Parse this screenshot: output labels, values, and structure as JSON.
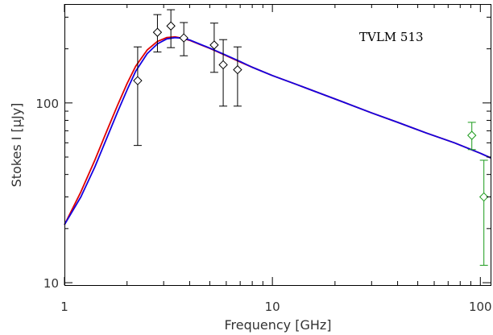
{
  "chart_data": {
    "type": "line",
    "annotation": "TVLM 513",
    "xlabel": "Frequency [GHz]",
    "ylabel": "Stokes I [μJy]",
    "x_scale": "log",
    "y_scale": "log",
    "xlim": [
      1,
      112
    ],
    "ylim": [
      9.7,
      355
    ],
    "x_ticks": [
      1,
      10,
      100
    ],
    "x_tick_labels": [
      "1",
      "10",
      "100"
    ],
    "y_ticks": [
      10,
      100
    ],
    "y_tick_labels": [
      "10",
      "100"
    ],
    "grid": false,
    "legend": "none",
    "colors": {
      "model_red": "#e00000",
      "model_blue": "#1400e0",
      "data_black": "#000000",
      "data_green": "#1a9a1a"
    },
    "series": [
      {
        "kind": "model-curve",
        "color": "#e00000",
        "x": [
          1.0,
          1.2,
          1.4,
          1.6,
          1.8,
          2.0,
          2.2,
          2.5,
          2.8,
          3.1,
          3.4,
          3.7,
          4.0,
          4.5,
          5.0,
          6.0,
          7.0,
          8.0,
          10.0,
          13.0,
          17.0,
          22.0,
          30.0,
          40.0,
          55.0,
          75.0,
          100.0,
          112.0
        ],
        "y": [
          21.0,
          32.0,
          48.0,
          70.0,
          97.0,
          128.0,
          160.0,
          197.0,
          220.0,
          231.0,
          233.0,
          229.0,
          223.0,
          211.0,
          201.0,
          183.0,
          169.0,
          158.0,
          142.0,
          127.0,
          113.0,
          101.0,
          88.0,
          78.0,
          68.0,
          60.0,
          52.5,
          49.5
        ]
      },
      {
        "kind": "model-curve",
        "color": "#1400e0",
        "x": [
          1.0,
          1.2,
          1.4,
          1.6,
          1.8,
          2.0,
          2.2,
          2.5,
          2.8,
          3.1,
          3.4,
          3.7,
          4.0,
          4.5,
          5.0,
          6.0,
          7.0,
          8.0,
          10.0,
          13.0,
          17.0,
          22.0,
          30.0,
          40.0,
          55.0,
          75.0,
          100.0,
          112.0
        ],
        "y": [
          21.0,
          30.0,
          44.0,
          64.0,
          89.0,
          118.0,
          150.0,
          188.0,
          213.0,
          227.0,
          231.0,
          229.0,
          224.0,
          212.0,
          202.0,
          184.0,
          170.0,
          158.0,
          142.0,
          127.0,
          113.0,
          101.0,
          88.0,
          78.0,
          68.0,
          60.0,
          52.5,
          49.5
        ]
      },
      {
        "kind": "data-points",
        "marker": "diamond",
        "color": "#000000",
        "points": [
          {
            "x": 2.25,
            "y": 133,
            "lo": 58,
            "hi": 205
          },
          {
            "x": 2.8,
            "y": 247,
            "lo": 192,
            "hi": 310
          },
          {
            "x": 3.25,
            "y": 268,
            "lo": 203,
            "hi": 330
          },
          {
            "x": 3.75,
            "y": 230,
            "lo": 183,
            "hi": 280
          },
          {
            "x": 5.25,
            "y": 210,
            "lo": 148,
            "hi": 278
          },
          {
            "x": 5.8,
            "y": 163,
            "lo": 96,
            "hi": 225
          },
          {
            "x": 6.8,
            "y": 153,
            "lo": 96,
            "hi": 205
          }
        ]
      },
      {
        "kind": "data-points",
        "marker": "diamond",
        "color": "#1a9a1a",
        "points": [
          {
            "x": 91,
            "y": 66,
            "lo": 55,
            "hi": 78
          },
          {
            "x": 104,
            "y": 30,
            "lo": 12.5,
            "hi": 48
          }
        ]
      }
    ]
  }
}
